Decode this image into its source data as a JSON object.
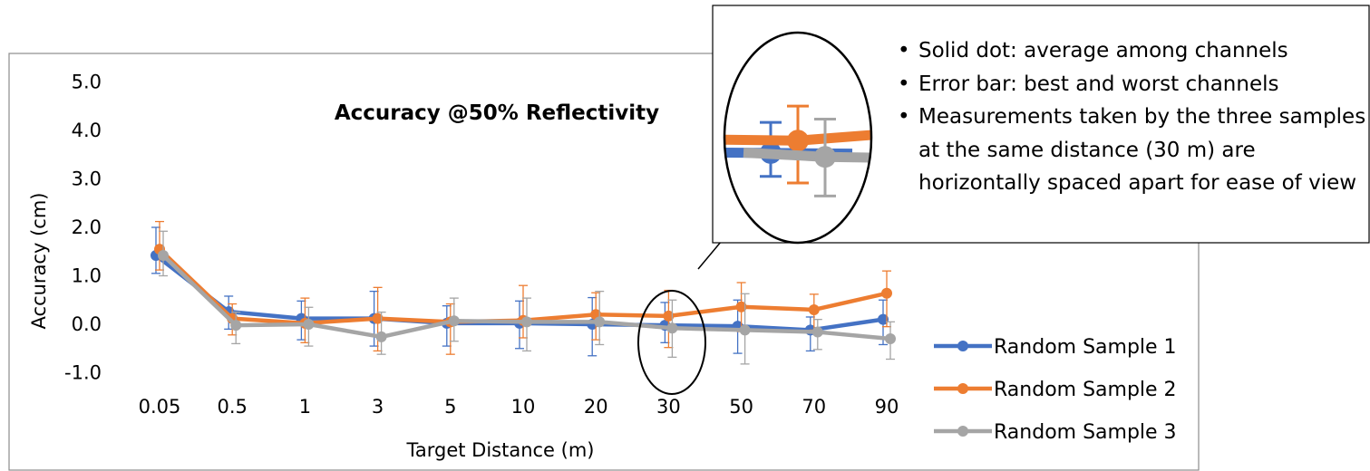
{
  "chart_data": {
    "type": "line",
    "title": "Accuracy @50% Reflectivity",
    "xlabel": "Target Distance (m)",
    "ylabel": "Accuracy (cm)",
    "ylim": [
      -1.0,
      5.0
    ],
    "yticks": [
      "5.0",
      "4.0",
      "3.0",
      "2.0",
      "1.0",
      "0.0",
      "-1.0"
    ],
    "categories": [
      "0.05",
      "0.5",
      "1",
      "3",
      "5",
      "10",
      "20",
      "30",
      "50",
      "70",
      "90"
    ],
    "grid": false,
    "legend_position": "right",
    "series": [
      {
        "name": "Random Sample 1",
        "color": "#4472C4",
        "values": [
          1.42,
          0.26,
          0.12,
          0.12,
          0.02,
          0.02,
          0.0,
          -0.02,
          -0.04,
          -0.12,
          0.1
        ],
        "err_high": [
          2.0,
          0.58,
          0.48,
          0.68,
          0.38,
          0.48,
          0.55,
          0.45,
          0.5,
          0.15,
          0.5
        ],
        "err_low": [
          1.05,
          -0.1,
          -0.32,
          -0.45,
          -0.45,
          -0.5,
          -0.65,
          -0.38,
          -0.6,
          -0.55,
          -0.42
        ]
      },
      {
        "name": "Random Sample 2",
        "color": "#ED7D31",
        "values": [
          1.55,
          0.12,
          0.02,
          0.12,
          0.05,
          0.08,
          0.2,
          0.17,
          0.36,
          0.3,
          0.64
        ],
        "err_high": [
          2.12,
          0.42,
          0.54,
          0.76,
          0.42,
          0.8,
          0.65,
          0.7,
          0.86,
          0.62,
          1.1
        ],
        "err_low": [
          1.12,
          -0.22,
          -0.38,
          -0.55,
          -0.62,
          -0.28,
          -0.32,
          -0.48,
          -0.15,
          -0.12,
          -0.05
        ]
      },
      {
        "name": "Random Sample 3",
        "color": "#A5A5A5",
        "values": [
          1.42,
          -0.02,
          0.0,
          -0.26,
          0.07,
          0.05,
          0.05,
          -0.08,
          -0.12,
          -0.16,
          -0.3
        ],
        "err_high": [
          1.92,
          0.25,
          0.35,
          0.25,
          0.54,
          0.54,
          0.68,
          0.5,
          0.63,
          0.1,
          0.05
        ],
        "err_low": [
          1.0,
          -0.4,
          -0.45,
          -0.62,
          -0.35,
          -0.55,
          -0.42,
          -0.68,
          -0.82,
          -0.52,
          -0.72
        ]
      }
    ]
  },
  "callout": {
    "notes": [
      "Solid dot: average among channels",
      "Error bar: best and worst channels"
    ],
    "note3_line1": "Measurements taken by the three samples",
    "note3_line2": "at the same distance (30 m) are",
    "note3_line3": "horizontally spaced apart for ease of view",
    "bullet": "•"
  }
}
